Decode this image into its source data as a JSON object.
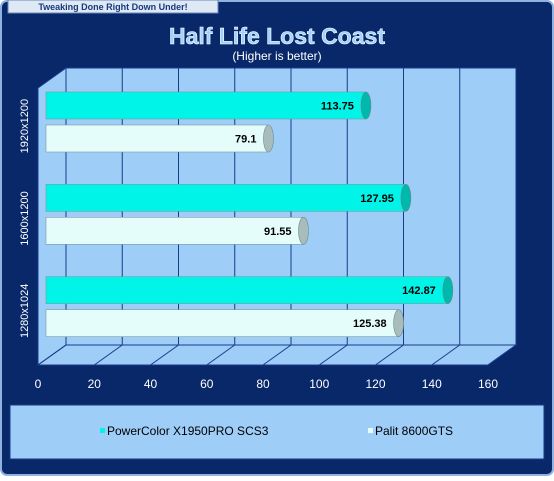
{
  "header": {
    "banner": "Tweaking Done Right Down Under!"
  },
  "chart_data": {
    "type": "bar",
    "orientation": "horizontal",
    "title": "Half Life Lost Coast",
    "subtitle": "(Higher is better)",
    "categories": [
      "1920x1200",
      "1600x1200",
      "1280x1024"
    ],
    "series": [
      {
        "name": "PowerColor X1950PRO SCS3",
        "color": "#00f5e8",
        "values": [
          113.75,
          127.95,
          142.87
        ]
      },
      {
        "name": "Palit 8600GTS",
        "color": "#e4fdfb",
        "values": [
          79.1,
          91.55,
          125.38
        ]
      }
    ],
    "xlim": [
      0,
      160
    ],
    "xticks": [
      0,
      20,
      40,
      60,
      80,
      100,
      120,
      140,
      160
    ],
    "grid": true,
    "legend": "bottom"
  }
}
